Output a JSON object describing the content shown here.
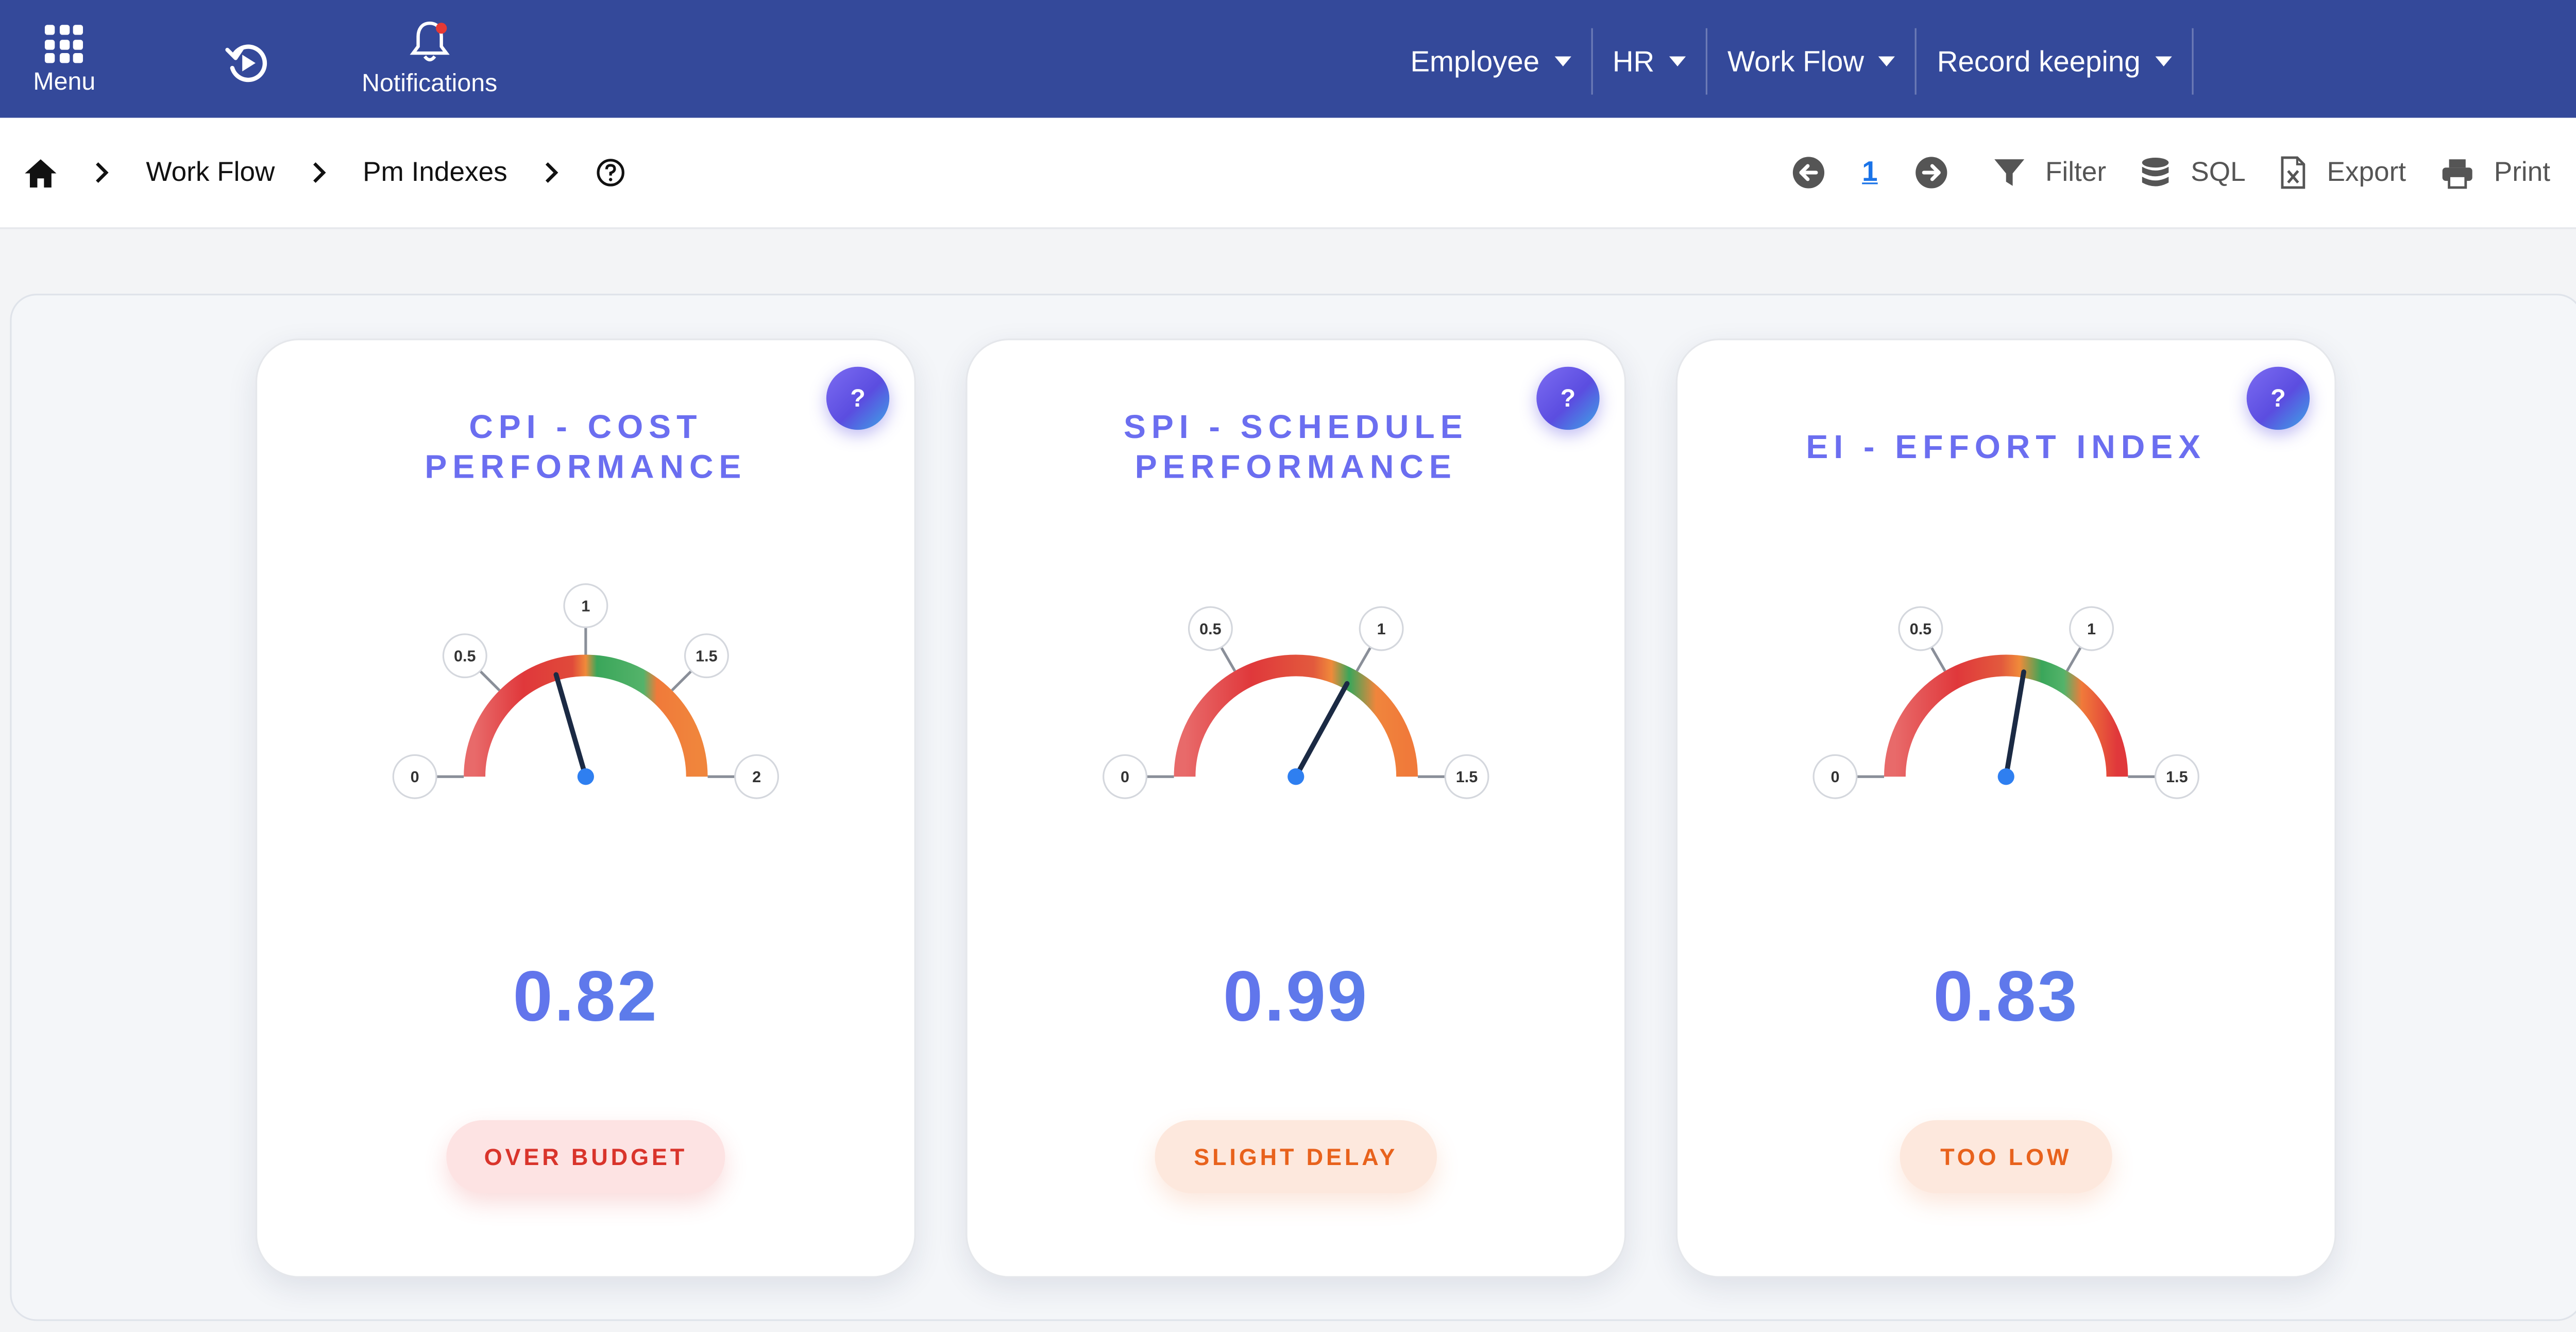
{
  "topbar": {
    "menu_label": "Menu",
    "refresh_icon": "refresh-icon",
    "notifications_label": "Notifications",
    "menus": [
      {
        "label": "Employee"
      },
      {
        "label": "HR"
      },
      {
        "label": "Work Flow"
      },
      {
        "label": "Record keeping"
      }
    ],
    "background_color": "#34499a"
  },
  "breadcrumb": {
    "items": [
      "Work Flow",
      "Pm Indexes"
    ]
  },
  "toolbar": {
    "page_number": "1",
    "filter_label": "Filter",
    "sql_label": "SQL",
    "export_label": "Export",
    "print_label": "Print"
  },
  "cards": [
    {
      "title": "CPI - COST\nPERFORMANCE",
      "help": "?",
      "value": "0.82",
      "needle_value": 0.82,
      "scale_max": 2,
      "ticks": [
        "0",
        "0.5",
        "1",
        "1.5",
        "2"
      ],
      "status": "OVER BUDGET",
      "status_tone": "red"
    },
    {
      "title": "SPI - SCHEDULE\nPERFORMANCE",
      "help": "?",
      "value": "0.99",
      "needle_value": 0.99,
      "scale_max": 1.5,
      "ticks": [
        "0",
        "0.5",
        "1",
        "1.5"
      ],
      "status": "SLIGHT DELAY",
      "status_tone": "orange"
    },
    {
      "title": "EI - EFFORT INDEX",
      "help": "?",
      "value": "0.83",
      "needle_value": 0.83,
      "scale_max": 1.5,
      "ticks": [
        "0",
        "0.5",
        "1",
        "1.5"
      ],
      "status": "TOO LOW",
      "status_tone": "orange"
    }
  ],
  "colors": {
    "accent": "#6b6ef0",
    "red_arc": "#e0383b",
    "orange_arc": "#f07a3a",
    "green_arc": "#3aa65a",
    "needle": "#1b2a44",
    "needle_hub": "#2f7ff0"
  }
}
